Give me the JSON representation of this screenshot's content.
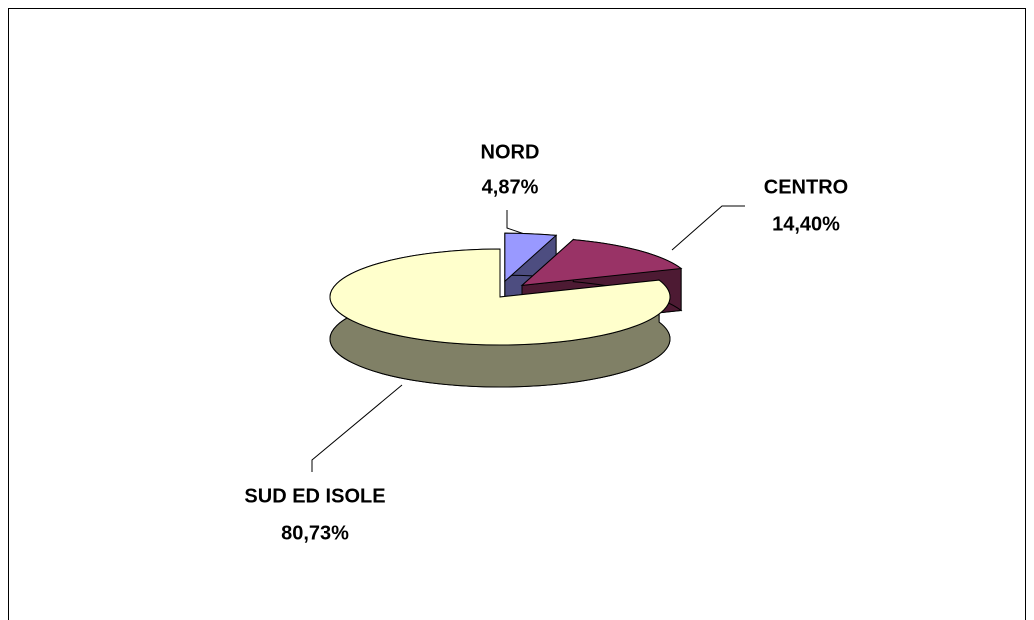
{
  "chart_data": {
    "type": "pie",
    "categories": [
      "NORD",
      "CENTRO",
      "SUD ED ISOLE"
    ],
    "values": [
      4.87,
      14.4,
      80.73
    ],
    "value_labels": [
      "4,87%",
      "14,40%",
      "80,73%"
    ],
    "colors": [
      "#9999ff",
      "#993366",
      "#ffffcc"
    ],
    "three_d": true
  }
}
